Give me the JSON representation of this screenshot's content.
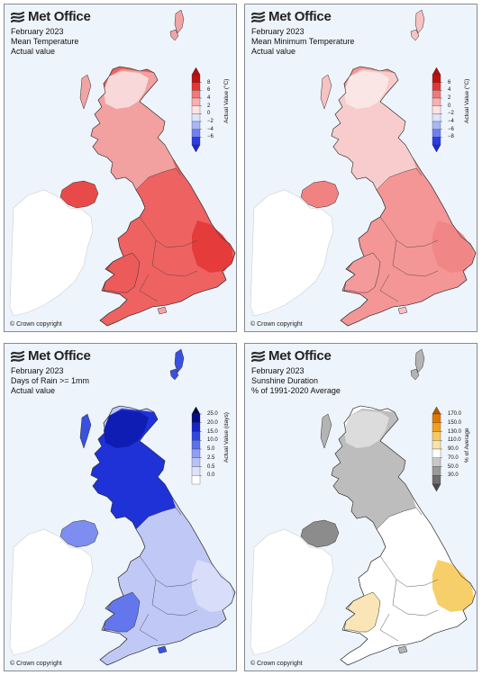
{
  "brand": {
    "name": "Met Office"
  },
  "panels": [
    {
      "id": "mean-temperature",
      "title": "February 2023",
      "subtitle": "Mean Temperature",
      "line3": "Actual value",
      "legend_title": "Actual Value (°C)",
      "legend_ticks": [
        "8",
        "6",
        "4",
        "2",
        "0",
        "−2",
        "−4",
        "−6"
      ],
      "legend_colors": [
        "#c01010",
        "#e43535",
        "#f07a7a",
        "#f8b0b0",
        "#fde3e3",
        "#dde4fb",
        "#a9b6f6",
        "#6f7ff0",
        "#2c3de0"
      ],
      "legend_top_arrow": "#b50c0c",
      "legend_bottom_arrow": "#1a2ad8",
      "map_fill": {
        "scotland": "#f2a0a0",
        "highlands": "#f8d8d8",
        "england": "#ef6262",
        "east": "#e53b3b",
        "wales": "#ed5a5a",
        "ni": "#e84a4a",
        "islands": "#f0a4a4"
      },
      "copyright": "© Crown copyright"
    },
    {
      "id": "mean-minimum-temperature",
      "title": "February 2023",
      "subtitle": "Mean Minimum Temperature",
      "line3": "Actual value",
      "legend_title": "Actual Value (°C)",
      "legend_ticks": [
        "6",
        "4",
        "2",
        "0",
        "−2",
        "−4",
        "−6",
        "−8"
      ],
      "legend_colors": [
        "#c01010",
        "#e43535",
        "#f07a7a",
        "#f8b0b0",
        "#fde3e3",
        "#dde4fb",
        "#a9b6f6",
        "#6f7ff0",
        "#2c3de0"
      ],
      "legend_top_arrow": "#b50c0c",
      "legend_bottom_arrow": "#1a2ad8",
      "map_fill": {
        "scotland": "#f8cccc",
        "highlands": "#fbe6e6",
        "england": "#f49696",
        "east": "#f08686",
        "wales": "#f49a9a",
        "ni": "#f08282",
        "islands": "#f6c2c2"
      },
      "copyright": "© Crown copyright"
    },
    {
      "id": "days-of-rain",
      "title": "February 2023",
      "subtitle": "Days of Rain >= 1mm",
      "line3": "Actual value",
      "legend_title": "Actual Value (days)",
      "legend_ticks": [
        "25.0",
        "20.0",
        "15.0",
        "10.0",
        "5.0",
        "2.5",
        "0.5",
        "0.0"
      ],
      "legend_colors": [
        "#050a8a",
        "#1424c8",
        "#2d46e4",
        "#5a70ee",
        "#8e9ef2",
        "#b8c1f6",
        "#dde1fb",
        "#ffffff"
      ],
      "legend_top_arrow": "#03064a",
      "legend_bottom_arrow": null,
      "map_fill": {
        "scotland": "#1e32d8",
        "highlands": "#0f1db4",
        "england": "#c0c8f6",
        "east": "#d8ddfa",
        "wales": "#6476ec",
        "ni": "#7d8ef0",
        "islands": "#3a50e0"
      },
      "copyright": "© Crown copyright"
    },
    {
      "id": "sunshine-duration",
      "title": "February 2023",
      "subtitle": "Sunshine Duration",
      "line3": "% of 1991-2020 Average",
      "legend_title": "% of Average",
      "legend_ticks": [
        "170.0",
        "150.0",
        "130.0",
        "110.0",
        "90.0",
        "70.0",
        "50.0",
        "30.0"
      ],
      "legend_colors": [
        "#e07800",
        "#f0a020",
        "#f6c860",
        "#fbe3a8",
        "#ffffff",
        "#c8c8c8",
        "#9a9a9a",
        "#6e6e6e"
      ],
      "legend_top_arrow": "#b05800",
      "legend_bottom_arrow": "#4a4a4a",
      "map_fill": {
        "scotland": "#bdbdbd",
        "highlands": "#dcdcdc",
        "england": "#ffffff",
        "east": "#f6cf6a",
        "wales": "#f9e5b6",
        "ni": "#8c8c8c",
        "islands": "#b4b4b4"
      },
      "copyright": "© Crown copyright"
    }
  ]
}
